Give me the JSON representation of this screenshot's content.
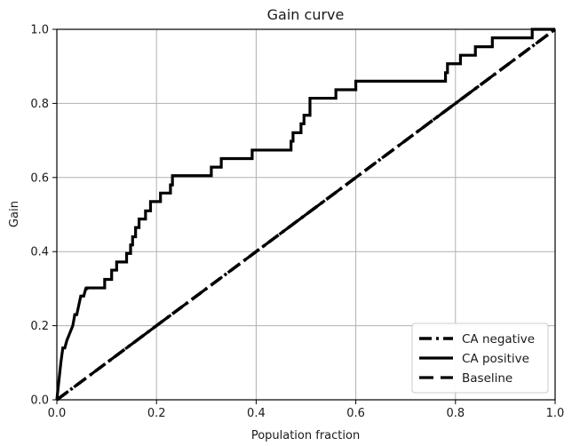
{
  "chart_data": {
    "type": "line",
    "title": "Gain curve",
    "xlabel": "Population fraction",
    "ylabel": "Gain",
    "xlim": [
      0.0,
      1.0
    ],
    "ylim": [
      0.0,
      1.0
    ],
    "xticks": [
      "0.0",
      "0.2",
      "0.4",
      "0.6",
      "0.8",
      "1.0"
    ],
    "yticks": [
      "0.0",
      "0.2",
      "0.4",
      "0.6",
      "0.8",
      "1.0"
    ],
    "grid": true,
    "legend_position": "bottom-right",
    "series": [
      {
        "name": "CA negative",
        "style": "dashdot",
        "color": "#000000",
        "x": [
          0.0,
          1.0
        ],
        "y": [
          0.0,
          1.0
        ]
      },
      {
        "name": "CA positive",
        "style": "solid-step",
        "color": "#000000",
        "x": [
          0.0,
          0.004,
          0.008,
          0.012,
          0.016,
          0.02,
          0.026,
          0.032,
          0.036,
          0.04,
          0.044,
          0.048,
          0.054,
          0.058,
          0.06,
          0.06,
          0.096,
          0.096,
          0.11,
          0.11,
          0.12,
          0.12,
          0.14,
          0.14,
          0.148,
          0.148,
          0.152,
          0.152,
          0.158,
          0.158,
          0.165,
          0.165,
          0.178,
          0.178,
          0.188,
          0.188,
          0.208,
          0.208,
          0.228,
          0.228,
          0.232,
          0.232,
          0.25,
          0.25,
          0.256,
          0.256,
          0.264,
          0.264,
          0.31,
          0.31,
          0.33,
          0.33,
          0.35,
          0.35,
          0.392,
          0.392,
          0.47,
          0.47,
          0.474,
          0.474,
          0.49,
          0.49,
          0.496,
          0.496,
          0.508,
          0.508,
          0.56,
          0.56,
          0.6,
          0.6,
          0.78,
          0.78,
          0.784,
          0.784,
          0.81,
          0.81,
          0.84,
          0.84,
          0.874,
          0.874,
          0.886,
          0.886,
          0.954,
          0.954,
          0.96,
          0.96,
          1.0
        ],
        "y": [
          0.0,
          0.05,
          0.1,
          0.14,
          0.14,
          0.16,
          0.18,
          0.2,
          0.23,
          0.23,
          0.255,
          0.28,
          0.28,
          0.3,
          0.3,
          0.302,
          0.302,
          0.325,
          0.325,
          0.35,
          0.35,
          0.372,
          0.372,
          0.395,
          0.395,
          0.418,
          0.418,
          0.44,
          0.44,
          0.465,
          0.465,
          0.488,
          0.488,
          0.51,
          0.51,
          0.535,
          0.535,
          0.558,
          0.558,
          0.58,
          0.58,
          0.605,
          0.605,
          0.605,
          0.605,
          0.605,
          0.605,
          0.605,
          0.605,
          0.628,
          0.628,
          0.651,
          0.651,
          0.651,
          0.651,
          0.674,
          0.674,
          0.698,
          0.698,
          0.721,
          0.721,
          0.745,
          0.745,
          0.768,
          0.768,
          0.814,
          0.814,
          0.837,
          0.837,
          0.86,
          0.86,
          0.883,
          0.883,
          0.907,
          0.907,
          0.93,
          0.93,
          0.953,
          0.953,
          0.977,
          0.977,
          0.977,
          0.977,
          1.0,
          1.0,
          1.0,
          1.0
        ]
      },
      {
        "name": "Baseline",
        "style": "dashed",
        "color": "#000000",
        "x": [
          0.0,
          1.0
        ],
        "y": [
          0.0,
          1.0
        ]
      }
    ]
  }
}
